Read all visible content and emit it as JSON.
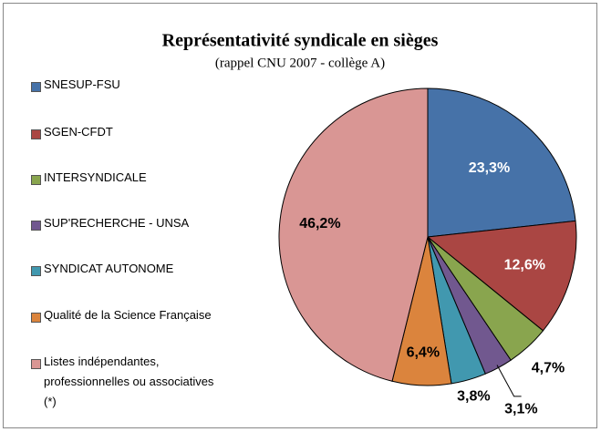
{
  "chart_data": {
    "type": "pie",
    "title": "Représentativité syndicale en sièges",
    "subtitle": "(rappel CNU 2007 - collège A)",
    "categories": [
      "SNESUP-FSU",
      "SGEN-CFDT",
      "INTERSYNDICALE",
      "SUP'RECHERCHE - UNSA",
      "SYNDICAT AUTONOME",
      "Qualité de la Science Française",
      "Listes indépendantes, professionnelles ou associatives (*)"
    ],
    "values": [
      23.3,
      12.6,
      4.7,
      3.1,
      3.8,
      6.4,
      46.2
    ],
    "value_labels": [
      "23,3%",
      "12,6%",
      "4,7%",
      "3,1%",
      "3,8%",
      "6,4%",
      "46,2%"
    ],
    "colors": [
      "#4672a8",
      "#aa4643",
      "#89a54e",
      "#71588f",
      "#4198af",
      "#db843d",
      "#d99694"
    ],
    "legend": "left"
  }
}
